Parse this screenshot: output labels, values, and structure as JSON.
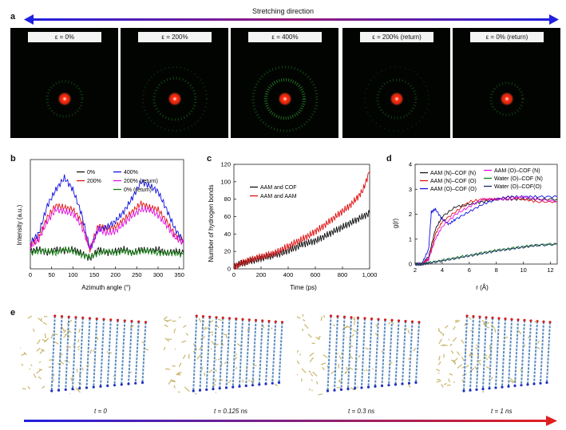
{
  "panel_letters": {
    "a": "a",
    "b": "b",
    "c": "c",
    "d": "d",
    "e": "e"
  },
  "stretch_title": "Stretching direction",
  "diffraction_labels": [
    "ε = 0%",
    "ε = 200%",
    "ε = 400%",
    "ε = 200% (return)",
    "ε = 0% (return)"
  ],
  "time_labels": [
    "t = 0",
    "t = 0.125 ns",
    "t = 0.3 ns",
    "t = 1 ns"
  ],
  "colors": {
    "blue": "#1010e0",
    "red": "#e01010",
    "magenta": "#e010e0",
    "green": "#108010",
    "black": "#111111",
    "navy": "#1a2a6c"
  },
  "chart_data": [
    {
      "type": "line",
      "id": "b",
      "xlabel": "Azimuth angle (°)",
      "ylabel": "Intensity (a.u.)",
      "xlim": [
        0,
        360
      ],
      "xticks": [
        0,
        50,
        100,
        150,
        200,
        250,
        300,
        350
      ],
      "legend": [
        "0%",
        "200%",
        "400%",
        "200% (return)",
        "0% (return)"
      ],
      "series": [
        {
          "name": "0%",
          "color": "#111111",
          "x": [
            0,
            20,
            40,
            60,
            80,
            100,
            120,
            140,
            160,
            180,
            200,
            220,
            240,
            260,
            280,
            300,
            320,
            340,
            360
          ],
          "values": [
            0.9,
            1.0,
            0.8,
            1.0,
            0.9,
            1.0,
            0.8,
            0.5,
            1.0,
            0.8,
            0.9,
            1.0,
            0.8,
            1.0,
            0.9,
            1.0,
            0.8,
            0.9,
            0.8
          ]
        },
        {
          "name": "200%",
          "color": "#e01010",
          "x": [
            0,
            20,
            40,
            60,
            80,
            100,
            120,
            140,
            160,
            180,
            200,
            220,
            240,
            260,
            280,
            300,
            320,
            340,
            360
          ],
          "values": [
            1.2,
            1.6,
            2.6,
            3.2,
            3.1,
            3.0,
            2.4,
            1.0,
            2.2,
            2.0,
            2.1,
            2.5,
            2.9,
            3.3,
            3.1,
            3.0,
            2.4,
            1.7,
            1.4
          ]
        },
        {
          "name": "400%",
          "color": "#1010e0",
          "x": [
            0,
            20,
            40,
            60,
            80,
            100,
            120,
            140,
            160,
            180,
            200,
            220,
            240,
            260,
            280,
            300,
            320,
            340,
            360
          ],
          "values": [
            1.3,
            1.8,
            3.2,
            4.0,
            4.6,
            4.0,
            2.8,
            1.0,
            2.0,
            2.1,
            2.4,
            2.9,
            3.6,
            4.4,
            4.2,
            3.9,
            3.0,
            2.0,
            1.4
          ]
        },
        {
          "name": "200% (return)",
          "color": "#e010e0",
          "x": [
            0,
            20,
            40,
            60,
            80,
            100,
            120,
            140,
            160,
            180,
            200,
            220,
            240,
            260,
            280,
            300,
            320,
            340,
            360
          ],
          "values": [
            1.1,
            1.5,
            2.4,
            3.0,
            2.9,
            2.8,
            2.2,
            1.0,
            2.0,
            1.8,
            1.9,
            2.3,
            2.7,
            3.0,
            3.0,
            2.7,
            2.2,
            1.6,
            1.3
          ]
        },
        {
          "name": "0% (return)",
          "color": "#108010",
          "x": [
            0,
            20,
            40,
            60,
            80,
            100,
            120,
            140,
            160,
            180,
            200,
            220,
            240,
            260,
            280,
            300,
            320,
            340,
            360
          ],
          "values": [
            0.8,
            0.9,
            0.9,
            0.8,
            1.0,
            0.9,
            0.7,
            0.6,
            0.8,
            0.9,
            0.8,
            0.9,
            0.8,
            0.9,
            0.9,
            0.8,
            0.8,
            0.8,
            0.7
          ]
        }
      ]
    },
    {
      "type": "line",
      "id": "c",
      "xlabel": "Time (ps)",
      "ylabel": "Number of hydrogen bonds",
      "xlim": [
        0,
        1000
      ],
      "ylim": [
        0,
        120
      ],
      "xticks": [
        0,
        200,
        400,
        600,
        800,
        "1,000"
      ],
      "yticks": [
        0,
        20,
        40,
        60,
        80,
        100,
        120
      ],
      "legend": [
        "AAM and COF",
        "AAM and AAM"
      ],
      "series": [
        {
          "name": "AAM and COF",
          "color": "#111111",
          "x": [
            0,
            50,
            100,
            150,
            200,
            250,
            300,
            350,
            400,
            450,
            500,
            550,
            600,
            650,
            700,
            750,
            800,
            850,
            900,
            950,
            1000
          ],
          "values": [
            3,
            6,
            8,
            10,
            12,
            14,
            16,
            18,
            21,
            24,
            28,
            30,
            32,
            36,
            40,
            44,
            48,
            52,
            56,
            60,
            64
          ]
        },
        {
          "name": "AAM and AAM",
          "color": "#e01010",
          "x": [
            0,
            50,
            100,
            150,
            200,
            250,
            300,
            350,
            400,
            450,
            500,
            550,
            600,
            650,
            700,
            750,
            800,
            850,
            900,
            950,
            1000
          ],
          "values": [
            2,
            6,
            9,
            12,
            14,
            16,
            18,
            22,
            26,
            30,
            34,
            38,
            43,
            48,
            54,
            60,
            66,
            72,
            80,
            90,
            112
          ]
        }
      ]
    },
    {
      "type": "line",
      "id": "d",
      "xlabel": "r (Å)",
      "ylabel": "g(r)",
      "xlim": [
        2,
        12.5
      ],
      "ylim": [
        0,
        4
      ],
      "xticks": [
        2,
        4,
        6,
        8,
        10,
        12
      ],
      "yticks": [
        0,
        1,
        2,
        3,
        4
      ],
      "legend": [
        "AAM (N)–COF (N)",
        "AAM (N)–COF (O)",
        "AAM (O)–COF (O)",
        "AAM (O)–COF (N)",
        "Water (O)–COF (N)",
        "Water (O)–COF(O)"
      ],
      "series": [
        {
          "name": "AAM (N)–COF (N)",
          "color": "#111111",
          "x": [
            2,
            2.5,
            3,
            3.5,
            4,
            5,
            6,
            7,
            8,
            9,
            10,
            11,
            12.5
          ],
          "values": [
            0,
            0,
            0.3,
            1.4,
            1.9,
            2.3,
            2.4,
            2.5,
            2.6,
            2.6,
            2.6,
            2.6,
            2.6
          ]
        },
        {
          "name": "AAM (N)–COF (O)",
          "color": "#e01010",
          "x": [
            2,
            2.5,
            3,
            3.5,
            4,
            5,
            6,
            7,
            8,
            9,
            10,
            11,
            12.5
          ],
          "values": [
            0,
            0,
            0.2,
            1.2,
            1.7,
            2.1,
            2.5,
            2.6,
            2.6,
            2.7,
            2.6,
            2.5,
            2.5
          ]
        },
        {
          "name": "AAM (O)–COF (O)",
          "color": "#1010e0",
          "x": [
            2,
            2.5,
            3,
            3.2,
            3.5,
            4,
            4.5,
            5,
            6,
            7,
            8,
            9,
            10,
            11,
            12.5
          ],
          "values": [
            0,
            0,
            0.6,
            2.1,
            2.2,
            1.8,
            1.6,
            1.8,
            2.1,
            2.4,
            2.6,
            2.7,
            2.7,
            2.7,
            2.7
          ]
        },
        {
          "name": "AAM (O)–COF (N)",
          "color": "#e010e0",
          "x": [
            2,
            2.5,
            3,
            3.5,
            4,
            5,
            6,
            7,
            8,
            9,
            10,
            11,
            12.5
          ],
          "values": [
            0,
            0,
            0.2,
            1.0,
            1.5,
            2.0,
            2.3,
            2.6,
            2.6,
            2.6,
            2.7,
            2.6,
            2.5
          ]
        },
        {
          "name": "Water (O)–COF (N)",
          "color": "#108010",
          "x": [
            2,
            2.5,
            3,
            4,
            5,
            6,
            7,
            8,
            9,
            10,
            11,
            12.5
          ],
          "values": [
            0,
            0,
            0.05,
            0.15,
            0.25,
            0.35,
            0.45,
            0.55,
            0.62,
            0.7,
            0.76,
            0.82
          ]
        },
        {
          "name": "Water (O)–COF(O)",
          "color": "#1a2a6c",
          "x": [
            2,
            2.5,
            3,
            4,
            5,
            6,
            7,
            8,
            9,
            10,
            11,
            12.5
          ],
          "values": [
            0,
            0,
            0.04,
            0.13,
            0.23,
            0.33,
            0.43,
            0.53,
            0.6,
            0.68,
            0.75,
            0.8
          ]
        }
      ]
    }
  ]
}
